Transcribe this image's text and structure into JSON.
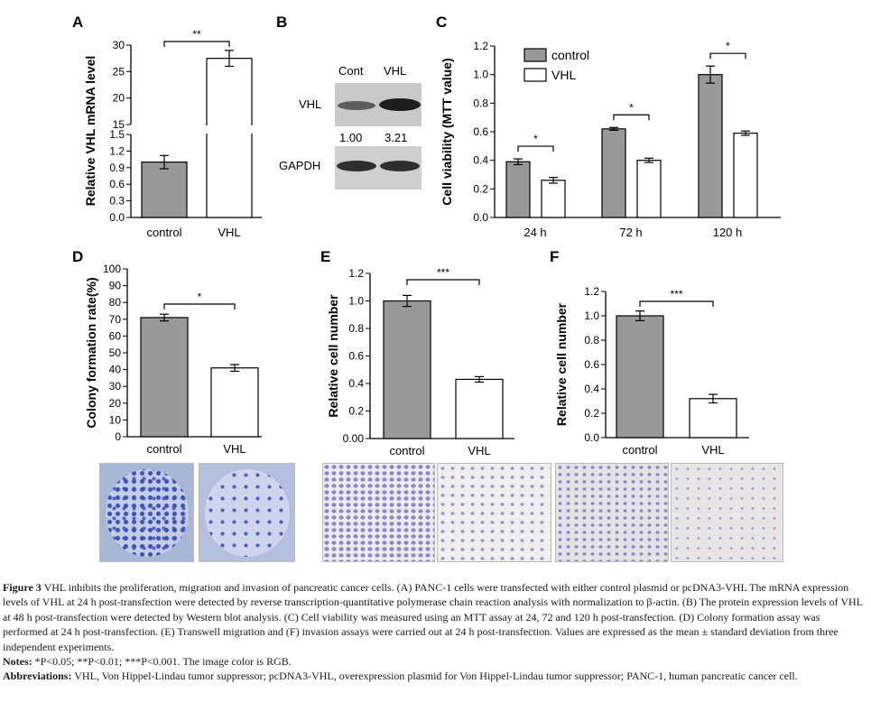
{
  "panels": {
    "A": {
      "letter": "A"
    },
    "B": {
      "letter": "B",
      "header_cont": "Cont",
      "header_vhl": "VHL",
      "row1": "VHL",
      "ratio1": "1.00",
      "ratio2": "3.21",
      "row2": "GAPDH"
    },
    "C": {
      "letter": "C"
    },
    "D": {
      "letter": "D"
    },
    "E": {
      "letter": "E"
    },
    "F": {
      "letter": "F"
    }
  },
  "colors": {
    "control": "#999999",
    "vhl": "#ffffff",
    "stroke": "#000000"
  },
  "chart_data": [
    {
      "id": "A",
      "type": "bar",
      "categories": [
        "control",
        "VHL"
      ],
      "values": [
        1.0,
        27.5
      ],
      "errors": [
        0.12,
        1.5
      ],
      "ylabel": "Relative VHL mRNA level",
      "axis_break": [
        1.5,
        15
      ],
      "ylim_lower": [
        0,
        1.5
      ],
      "ylim_upper": [
        15,
        30
      ],
      "yticks_lower": [
        "0.0",
        "0.3",
        "0.6",
        "0.9",
        "1.2",
        "1.5"
      ],
      "yticks_upper": [
        "15",
        "20",
        "25",
        "30"
      ],
      "significance": "**"
    },
    {
      "id": "C",
      "type": "bar",
      "categories": [
        "24 h",
        "72 h",
        "120 h"
      ],
      "series": [
        {
          "name": "control",
          "values": [
            0.39,
            0.62,
            1.0
          ],
          "errors": [
            0.02,
            0.01,
            0.06
          ]
        },
        {
          "name": "VHL",
          "values": [
            0.26,
            0.4,
            0.59
          ],
          "errors": [
            0.02,
            0.015,
            0.015
          ]
        }
      ],
      "ylabel": "Cell viability (MTT  value)",
      "ylim": [
        0,
        1.2
      ],
      "yticks": [
        "0.0",
        "0.2",
        "0.4",
        "0.6",
        "0.8",
        "1.0",
        "1.2"
      ],
      "significance": [
        "*",
        "*",
        "*"
      ],
      "legend": "top-left"
    },
    {
      "id": "D",
      "type": "bar",
      "categories": [
        "control",
        "VHL"
      ],
      "values": [
        71,
        41
      ],
      "errors": [
        2,
        2
      ],
      "ylabel": "Colony formation rate(%)",
      "ylim": [
        0,
        100
      ],
      "yticks": [
        "0",
        "10",
        "20",
        "30",
        "40",
        "50",
        "60",
        "70",
        "80",
        "90",
        "100"
      ],
      "significance": "*"
    },
    {
      "id": "E",
      "type": "bar",
      "categories": [
        "control",
        "VHL"
      ],
      "values": [
        1.0,
        0.43
      ],
      "errors": [
        0.04,
        0.02
      ],
      "ylabel": "Relative cell number",
      "ylim": [
        0,
        1.2
      ],
      "yticks": [
        "0.00",
        "0.2",
        "0.4",
        "0.6",
        "0.8",
        "1.0",
        "1.2"
      ],
      "significance": "***"
    },
    {
      "id": "F",
      "type": "bar",
      "categories": [
        "control",
        "VHL"
      ],
      "values": [
        1.0,
        0.32
      ],
      "errors": [
        0.04,
        0.035
      ],
      "ylabel": "Relative cell number",
      "ylim": [
        0,
        1.2
      ],
      "yticks": [
        "0.0",
        "0.2",
        "0.4",
        "0.6",
        "0.8",
        "1.0",
        "1.2"
      ],
      "significance": "***"
    }
  ],
  "caption": {
    "fig_label": "Figure 3",
    "text": " VHL inhibits the proliferation, migration and invasion of pancreatic cancer cells. (A) PANC-1 cells were transfected with either control plasmid or pcDNA3-VHL The mRNA expression levels of VHL at 24 h post-transfection were detected by reverse transcription-quantitative polymerase chain reaction analysis with normalization to β-actin. (B) The protein expression levels of VHL at 48 h post-transfection were detected by Western blot analysis. (C) Cell viability was measured using an MTT assay at 24, 72 and 120 h post-transfection. (D) Colony formation assay was performed at 24 h post-transfection. (E) Transwell migration and (F) invasion assays were carried out at 24 h post-transfection. Values are expressed as the mean ± standard deviation from three independent experiments.",
    "notes_label": "Notes:",
    "notes_text": " *P<0.05; **P<0.01; ***P<0.001. The image color is RGB.",
    "abbr_label": "Abbreviations:",
    "abbr_text": " VHL, Von Hippel-Lindau tumor suppressor; pcDNA3-VHL, overexpression plasmid for Von Hippel-Lindau tumor suppressor; PANC-1, human pancreatic cancer cell."
  }
}
